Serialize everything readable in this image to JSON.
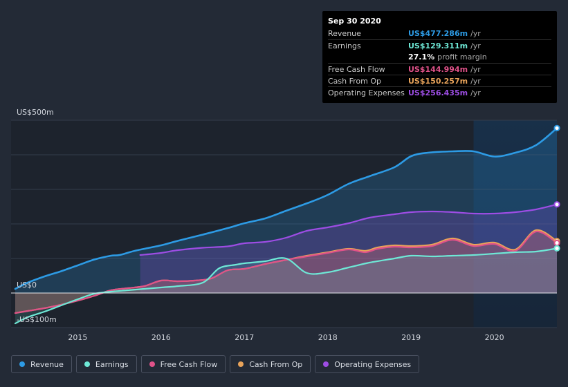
{
  "chart_data": {
    "type": "area",
    "title": "",
    "y_axis": {
      "min": -100,
      "max": 500,
      "top_label": "US$500m",
      "zero_label": "US$0",
      "bottom_label": "-US$100m"
    },
    "x_axis": {
      "min": 2014.2,
      "max": 2020.75,
      "ticks": [
        {
          "value": 2015,
          "label": "2015"
        },
        {
          "value": 2016,
          "label": "2016"
        },
        {
          "value": 2017,
          "label": "2017"
        },
        {
          "value": 2018,
          "label": "2018"
        },
        {
          "value": 2019,
          "label": "2019"
        },
        {
          "value": 2020,
          "label": "2020"
        }
      ]
    },
    "highlight_start": 2019.75,
    "series": [
      {
        "key": "revenue",
        "name": "Revenue",
        "color": "#2d9be5",
        "fill": true,
        "points": [
          [
            2014.25,
            12
          ],
          [
            2014.4,
            30
          ],
          [
            2014.6,
            48
          ],
          [
            2014.8,
            63
          ],
          [
            2015,
            80
          ],
          [
            2015.2,
            97
          ],
          [
            2015.4,
            108
          ],
          [
            2015.5,
            110
          ],
          [
            2015.7,
            123
          ],
          [
            2016,
            138
          ],
          [
            2016.2,
            151
          ],
          [
            2016.5,
            169
          ],
          [
            2016.8,
            188
          ],
          [
            2017,
            202
          ],
          [
            2017.25,
            216
          ],
          [
            2017.5,
            238
          ],
          [
            2017.8,
            264
          ],
          [
            2018,
            284
          ],
          [
            2018.25,
            316
          ],
          [
            2018.5,
            338
          ],
          [
            2018.8,
            364
          ],
          [
            2019,
            396
          ],
          [
            2019.2,
            406
          ],
          [
            2019.5,
            410
          ],
          [
            2019.75,
            410
          ],
          [
            2020,
            395
          ],
          [
            2020.25,
            406
          ],
          [
            2020.5,
            428
          ],
          [
            2020.75,
            477.286
          ]
        ]
      },
      {
        "key": "opex",
        "name": "Operating Expenses",
        "color": "#9d4de4",
        "fill": true,
        "points": [
          [
            2015.75,
            110
          ],
          [
            2016,
            116
          ],
          [
            2016.2,
            124
          ],
          [
            2016.5,
            131
          ],
          [
            2016.8,
            135
          ],
          [
            2017,
            144
          ],
          [
            2017.25,
            148
          ],
          [
            2017.5,
            160
          ],
          [
            2017.75,
            180
          ],
          [
            2018,
            190
          ],
          [
            2018.25,
            202
          ],
          [
            2018.5,
            218
          ],
          [
            2018.8,
            228
          ],
          [
            2019,
            234
          ],
          [
            2019.25,
            236
          ],
          [
            2019.5,
            234
          ],
          [
            2019.75,
            230
          ],
          [
            2020,
            230
          ],
          [
            2020.25,
            234
          ],
          [
            2020.5,
            242
          ],
          [
            2020.75,
            256.435
          ]
        ]
      },
      {
        "key": "cfo",
        "name": "Cash From Op",
        "color": "#e8a35a",
        "fill": true,
        "points": [
          [
            2014.25,
            -58
          ],
          [
            2014.4,
            -52
          ],
          [
            2014.6,
            -44
          ],
          [
            2014.8,
            -34
          ],
          [
            2015,
            -22
          ],
          [
            2015.2,
            -8
          ],
          [
            2015.4,
            8
          ],
          [
            2015.6,
            14
          ],
          [
            2015.8,
            20
          ],
          [
            2016,
            36
          ],
          [
            2016.2,
            34
          ],
          [
            2016.4,
            36
          ],
          [
            2016.6,
            42
          ],
          [
            2016.8,
            66
          ],
          [
            2017,
            70
          ],
          [
            2017.25,
            84
          ],
          [
            2017.5,
            96
          ],
          [
            2017.75,
            108
          ],
          [
            2018,
            118
          ],
          [
            2018.25,
            128
          ],
          [
            2018.45,
            122
          ],
          [
            2018.6,
            132
          ],
          [
            2018.8,
            138
          ],
          [
            2019,
            136
          ],
          [
            2019.25,
            140
          ],
          [
            2019.5,
            158
          ],
          [
            2019.75,
            140
          ],
          [
            2020,
            146
          ],
          [
            2020.25,
            126
          ],
          [
            2020.5,
            182
          ],
          [
            2020.75,
            150.257
          ]
        ]
      },
      {
        "key": "fcf",
        "name": "Free Cash Flow",
        "color": "#e05289",
        "fill": true,
        "points": [
          [
            2014.25,
            -58
          ],
          [
            2014.4,
            -52
          ],
          [
            2014.6,
            -44
          ],
          [
            2014.8,
            -34
          ],
          [
            2015,
            -22
          ],
          [
            2015.2,
            -8
          ],
          [
            2015.4,
            8
          ],
          [
            2015.6,
            14
          ],
          [
            2015.8,
            20
          ],
          [
            2016,
            36
          ],
          [
            2016.2,
            34
          ],
          [
            2016.4,
            36
          ],
          [
            2016.6,
            42
          ],
          [
            2016.8,
            66
          ],
          [
            2017,
            70
          ],
          [
            2017.25,
            84
          ],
          [
            2017.5,
            96
          ],
          [
            2017.75,
            106
          ],
          [
            2018,
            116
          ],
          [
            2018.25,
            126
          ],
          [
            2018.45,
            118
          ],
          [
            2018.6,
            128
          ],
          [
            2018.8,
            134
          ],
          [
            2019,
            132
          ],
          [
            2019.25,
            136
          ],
          [
            2019.5,
            154
          ],
          [
            2019.75,
            136
          ],
          [
            2020,
            142
          ],
          [
            2020.25,
            122
          ],
          [
            2020.5,
            178
          ],
          [
            2020.75,
            144.994
          ]
        ]
      },
      {
        "key": "earnings",
        "name": "Earnings",
        "color": "#6ee8d6",
        "fill": true,
        "points": [
          [
            2014.25,
            -88
          ],
          [
            2014.4,
            -70
          ],
          [
            2014.6,
            -54
          ],
          [
            2014.8,
            -36
          ],
          [
            2015,
            -18
          ],
          [
            2015.2,
            -2
          ],
          [
            2015.4,
            4
          ],
          [
            2015.6,
            8
          ],
          [
            2015.8,
            12
          ],
          [
            2016,
            16
          ],
          [
            2016.2,
            20
          ],
          [
            2016.5,
            30
          ],
          [
            2016.7,
            72
          ],
          [
            2016.9,
            82
          ],
          [
            2017,
            86
          ],
          [
            2017.25,
            92
          ],
          [
            2017.5,
            100
          ],
          [
            2017.75,
            58
          ],
          [
            2018,
            60
          ],
          [
            2018.25,
            74
          ],
          [
            2018.5,
            88
          ],
          [
            2018.8,
            100
          ],
          [
            2019,
            108
          ],
          [
            2019.25,
            106
          ],
          [
            2019.5,
            108
          ],
          [
            2019.75,
            110
          ],
          [
            2020,
            114
          ],
          [
            2020.25,
            118
          ],
          [
            2020.5,
            120
          ],
          [
            2020.75,
            129.311
          ]
        ]
      }
    ]
  },
  "tooltip": {
    "date": "Sep 30 2020",
    "rows": [
      {
        "label": "Revenue",
        "value": "US$477.286m",
        "unit": "/yr",
        "color": "#2d9be5"
      },
      {
        "label": "Earnings",
        "value": "US$129.311m",
        "unit": "/yr",
        "color": "#6ee8d6"
      },
      {
        "label": "",
        "value": "27.1%",
        "unit": "profit margin",
        "color": "#ffffff"
      },
      {
        "label": "Free Cash Flow",
        "value": "US$144.994m",
        "unit": "/yr",
        "color": "#e05289"
      },
      {
        "label": "Cash From Op",
        "value": "US$150.257m",
        "unit": "/yr",
        "color": "#e8a35a"
      },
      {
        "label": "Operating Expenses",
        "value": "US$256.435m",
        "unit": "/yr",
        "color": "#9d4de4"
      }
    ]
  },
  "legend": [
    {
      "label": "Revenue",
      "color": "#2d9be5"
    },
    {
      "label": "Earnings",
      "color": "#6ee8d6"
    },
    {
      "label": "Free Cash Flow",
      "color": "#e05289"
    },
    {
      "label": "Cash From Op",
      "color": "#e8a35a"
    },
    {
      "label": "Operating Expenses",
      "color": "#9d4de4"
    }
  ]
}
